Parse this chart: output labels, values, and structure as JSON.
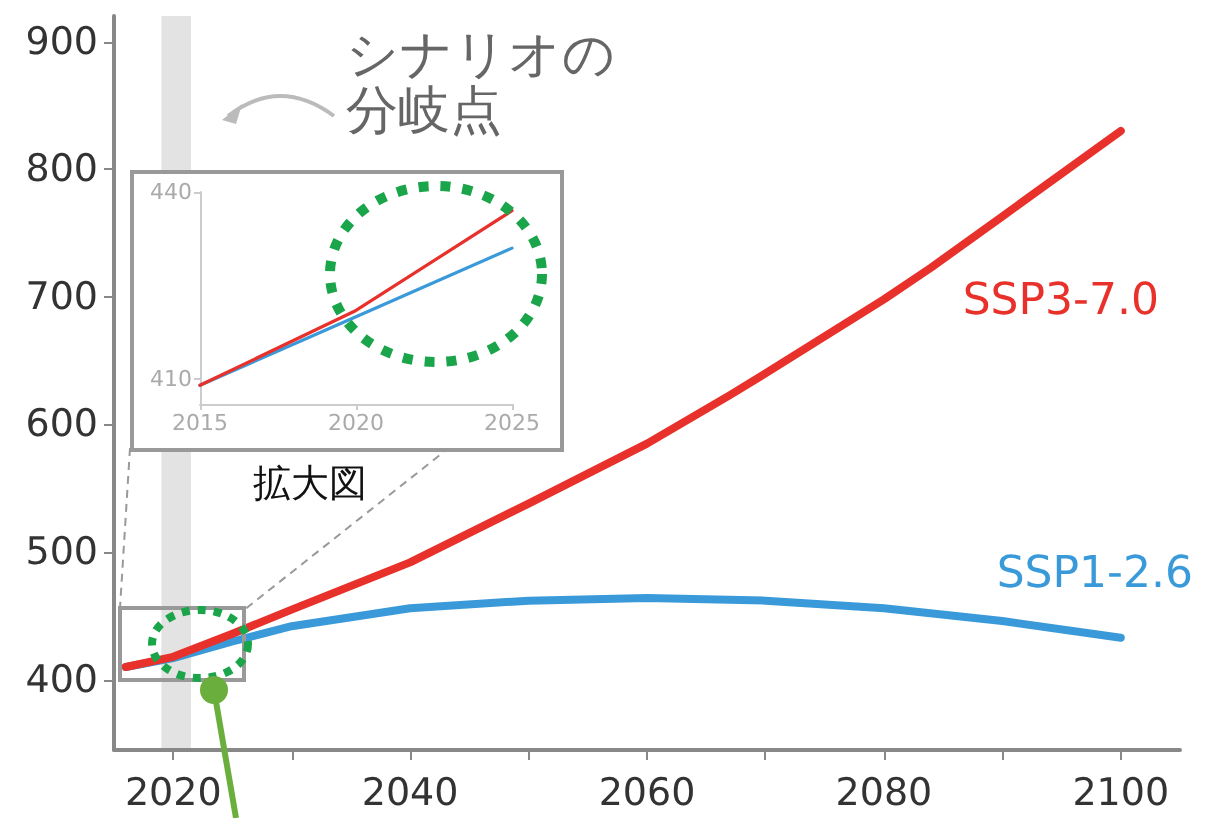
{
  "chart_data": [
    {
      "type": "line",
      "xlim": [
        2015,
        2105
      ],
      "ylim": [
        345,
        920
      ],
      "xticks": [
        2020,
        {
          "value": 2030,
          "label": null
        },
        2040,
        {
          "value": 2050,
          "label": null
        },
        2060,
        {
          "value": 2070,
          "label": null
        },
        2080,
        {
          "value": 2090,
          "label": null
        },
        2100
      ],
      "yticks": [
        400,
        500,
        600,
        700,
        800,
        900
      ],
      "grid": false,
      "legend": false,
      "marker": "none",
      "line_style": "solid",
      "bands": [
        {
          "axis": "x",
          "from": 2019,
          "to": 2021.5,
          "color": "#e3e3e3"
        }
      ],
      "annotations": [
        "シナリオの分岐点",
        "拡大図"
      ],
      "series": [
        {
          "name": "SSP3-7.0",
          "color": "#e8312a",
          "x": [
            2016,
            2020,
            2025,
            2030,
            2040,
            2050,
            2060,
            2067,
            2070,
            2080,
            2084,
            2090,
            2100
          ],
          "values": [
            410,
            418,
            436,
            455,
            492,
            538,
            585,
            623,
            640,
            698,
            723,
            763,
            830
          ]
        },
        {
          "name": "SSP1-2.6",
          "color": "#3a9ad9",
          "x": [
            2016,
            2020,
            2025,
            2030,
            2040,
            2050,
            2060,
            2070,
            2080,
            2090,
            2100
          ],
          "values": [
            410,
            417,
            430,
            442,
            456,
            462,
            464,
            462,
            456,
            446,
            433
          ]
        }
      ]
    },
    {
      "type": "line",
      "xlim": [
        2015,
        2025
      ],
      "ylim": [
        406,
        440
      ],
      "xticks": [
        2015,
        2020,
        2025
      ],
      "yticks": [
        410,
        440
      ],
      "grid": false,
      "legend": false,
      "marker": "none",
      "line_style": "solid",
      "series": [
        {
          "color": "#e8312a",
          "x": [
            2015,
            2020,
            2025
          ],
          "values": [
            409,
            421,
            437
          ]
        },
        {
          "color": "#3a9ad9",
          "x": [
            2015,
            2020,
            2025
          ],
          "values": [
            409,
            420,
            431
          ]
        }
      ]
    }
  ]
}
